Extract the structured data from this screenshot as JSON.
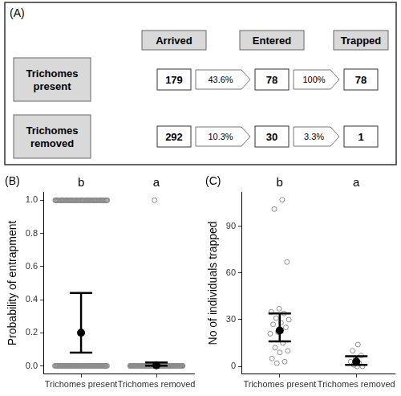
{
  "diagram": {
    "panel_label": "(A)",
    "stages": [
      "Arrived",
      "Entered",
      "Trapped"
    ],
    "rows": [
      {
        "label": "Trichomes present",
        "counts": [
          179,
          78,
          78
        ],
        "rates": [
          "43.6%",
          "100%"
        ]
      },
      {
        "label": "Trichomes removed",
        "counts": [
          292,
          30,
          1
        ],
        "rates": [
          "10.3%",
          "3.3%"
        ]
      }
    ]
  },
  "chart_data": [
    {
      "type": "scatter",
      "panel_label": "(B)",
      "y_label": "Probability of entrapment",
      "categories": [
        "Trichomes present",
        "Trichomes removed"
      ],
      "points": [
        [
          {
            "value": 0,
            "count": 101
          },
          {
            "value": 1,
            "count": 78
          }
        ],
        [
          {
            "value": 0,
            "count": 291
          },
          {
            "value": 1,
            "count": 1
          }
        ]
      ],
      "mean": [
        0.2,
        0.004
      ],
      "ci_low": [
        0.08,
        0.001
      ],
      "ci_high": [
        0.44,
        0.02
      ],
      "significance_letters": [
        "b",
        "a"
      ],
      "ylim": [
        -0.05,
        1.05
      ],
      "yticks": [
        {
          "value": 0,
          "label": "0.0"
        },
        {
          "value": 0.2,
          "label": "0.2"
        },
        {
          "value": 0.4,
          "label": "0.4"
        },
        {
          "value": 0.6,
          "label": "0.6"
        },
        {
          "value": 0.8,
          "label": "0.8"
        },
        {
          "value": 1,
          "label": "1.0"
        }
      ],
      "color": "#8c8c8c",
      "marker": "open_circle",
      "grid": false
    },
    {
      "type": "scatter",
      "panel_label": "(C)",
      "y_label": "No of individuals trapped",
      "categories": [
        "Trichomes present",
        "Trichomes removed"
      ],
      "points": [
        [
          107,
          101,
          67,
          37,
          35,
          34,
          31,
          30,
          28,
          27,
          25,
          22,
          21,
          15,
          12,
          10,
          9,
          5,
          3,
          2
        ],
        [
          14,
          10,
          7,
          5,
          3,
          2,
          1,
          0,
          0
        ]
      ],
      "mean": [
        23,
        3
      ],
      "ci_low": [
        16,
        1
      ],
      "ci_high": [
        34,
        6.5
      ],
      "significance_letters": [
        "b",
        "a"
      ],
      "ylim": [
        -5,
        112
      ],
      "yticks": [
        0,
        30,
        60,
        90
      ],
      "color": "#8c8c8c",
      "marker": "open_circle",
      "grid": false
    }
  ]
}
